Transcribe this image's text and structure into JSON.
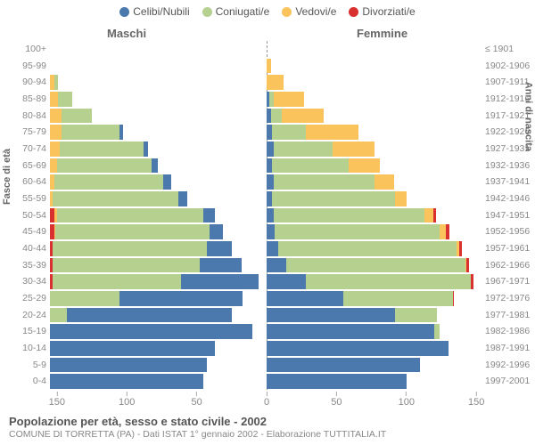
{
  "legend": [
    {
      "label": "Celibi/Nubili",
      "color": "#4b79ad"
    },
    {
      "label": "Coniugati/e",
      "color": "#b6d090"
    },
    {
      "label": "Vedovi/e",
      "color": "#fbc35c"
    },
    {
      "label": "Divorziati/e",
      "color": "#d93030"
    }
  ],
  "side_titles": {
    "left": "Maschi",
    "right": "Femmine"
  },
  "axis_titles": {
    "left": "Fasce di età",
    "right": "Anni di nascita"
  },
  "x_axis": {
    "max": 155,
    "ticks": [
      150,
      100,
      50,
      0,
      50,
      100,
      150
    ]
  },
  "footer": {
    "title": "Popolazione per età, sesso e stato civile - 2002",
    "subtitle": "COMUNE DI TORRETTA (PA) - Dati ISTAT 1° gennaio 2002 - Elaborazione TUTTITALIA.IT"
  },
  "colors": {
    "celibi": "#4b79ad",
    "coniugati": "#b6d090",
    "vedovi": "#fbc35c",
    "divorziati": "#d93030"
  },
  "rows": [
    {
      "age": "100+",
      "birth": "≤ 1901",
      "m": {
        "c": 0,
        "co": 0,
        "v": 0,
        "d": 0
      },
      "f": {
        "c": 0,
        "co": 0,
        "v": 0,
        "d": 0
      }
    },
    {
      "age": "95-99",
      "birth": "1902-1906",
      "m": {
        "c": 0,
        "co": 0,
        "v": 0,
        "d": 0
      },
      "f": {
        "c": 0,
        "co": 0,
        "v": 3,
        "d": 0
      }
    },
    {
      "age": "90-94",
      "birth": "1907-1911",
      "m": {
        "c": 0,
        "co": 3,
        "v": 3,
        "d": 0
      },
      "f": {
        "c": 0,
        "co": 0,
        "v": 12,
        "d": 0
      }
    },
    {
      "age": "85-89",
      "birth": "1912-1916",
      "m": {
        "c": 0,
        "co": 10,
        "v": 6,
        "d": 0
      },
      "f": {
        "c": 2,
        "co": 3,
        "v": 22,
        "d": 0
      }
    },
    {
      "age": "80-84",
      "birth": "1917-1921",
      "m": {
        "c": 0,
        "co": 22,
        "v": 8,
        "d": 0
      },
      "f": {
        "c": 3,
        "co": 8,
        "v": 30,
        "d": 0
      }
    },
    {
      "age": "75-79",
      "birth": "1922-1926",
      "m": {
        "c": 2,
        "co": 42,
        "v": 8,
        "d": 0
      },
      "f": {
        "c": 4,
        "co": 24,
        "v": 38,
        "d": 0
      }
    },
    {
      "age": "70-74",
      "birth": "1927-1931",
      "m": {
        "c": 3,
        "co": 60,
        "v": 7,
        "d": 0
      },
      "f": {
        "c": 5,
        "co": 42,
        "v": 30,
        "d": 0
      }
    },
    {
      "age": "65-69",
      "birth": "1932-1936",
      "m": {
        "c": 4,
        "co": 68,
        "v": 5,
        "d": 0
      },
      "f": {
        "c": 4,
        "co": 55,
        "v": 22,
        "d": 0
      }
    },
    {
      "age": "60-64",
      "birth": "1937-1941",
      "m": {
        "c": 6,
        "co": 78,
        "v": 3,
        "d": 0
      },
      "f": {
        "c": 5,
        "co": 72,
        "v": 14,
        "d": 0
      }
    },
    {
      "age": "55-59",
      "birth": "1942-1946",
      "m": {
        "c": 6,
        "co": 90,
        "v": 2,
        "d": 0
      },
      "f": {
        "c": 4,
        "co": 88,
        "v": 8,
        "d": 0
      }
    },
    {
      "age": "50-54",
      "birth": "1947-1951",
      "m": {
        "c": 8,
        "co": 105,
        "v": 2,
        "d": 3
      },
      "f": {
        "c": 5,
        "co": 108,
        "v": 6,
        "d": 2
      }
    },
    {
      "age": "45-49",
      "birth": "1952-1956",
      "m": {
        "c": 10,
        "co": 110,
        "v": 1,
        "d": 3
      },
      "f": {
        "c": 6,
        "co": 118,
        "v": 4,
        "d": 3
      }
    },
    {
      "age": "40-44",
      "birth": "1957-1961",
      "m": {
        "c": 18,
        "co": 110,
        "v": 0,
        "d": 2
      },
      "f": {
        "c": 8,
        "co": 128,
        "v": 2,
        "d": 2
      }
    },
    {
      "age": "35-39",
      "birth": "1962-1966",
      "m": {
        "c": 30,
        "co": 105,
        "v": 0,
        "d": 2
      },
      "f": {
        "c": 14,
        "co": 128,
        "v": 1,
        "d": 2
      }
    },
    {
      "age": "30-34",
      "birth": "1967-1971",
      "m": {
        "c": 55,
        "co": 92,
        "v": 0,
        "d": 2
      },
      "f": {
        "c": 28,
        "co": 118,
        "v": 0,
        "d": 2
      }
    },
    {
      "age": "25-29",
      "birth": "1972-1976",
      "m": {
        "c": 88,
        "co": 50,
        "v": 0,
        "d": 0
      },
      "f": {
        "c": 55,
        "co": 78,
        "v": 0,
        "d": 1
      }
    },
    {
      "age": "20-24",
      "birth": "1977-1981",
      "m": {
        "c": 118,
        "co": 12,
        "v": 0,
        "d": 0
      },
      "f": {
        "c": 92,
        "co": 30,
        "v": 0,
        "d": 0
      }
    },
    {
      "age": "15-19",
      "birth": "1982-1986",
      "m": {
        "c": 145,
        "co": 0,
        "v": 0,
        "d": 0
      },
      "f": {
        "c": 120,
        "co": 4,
        "v": 0,
        "d": 0
      }
    },
    {
      "age": "10-14",
      "birth": "1987-1991",
      "m": {
        "c": 118,
        "co": 0,
        "v": 0,
        "d": 0
      },
      "f": {
        "c": 130,
        "co": 0,
        "v": 0,
        "d": 0
      }
    },
    {
      "age": "5-9",
      "birth": "1992-1996",
      "m": {
        "c": 112,
        "co": 0,
        "v": 0,
        "d": 0
      },
      "f": {
        "c": 110,
        "co": 0,
        "v": 0,
        "d": 0
      }
    },
    {
      "age": "0-4",
      "birth": "1997-2001",
      "m": {
        "c": 110,
        "co": 0,
        "v": 0,
        "d": 0
      },
      "f": {
        "c": 100,
        "co": 0,
        "v": 0,
        "d": 0
      }
    }
  ]
}
